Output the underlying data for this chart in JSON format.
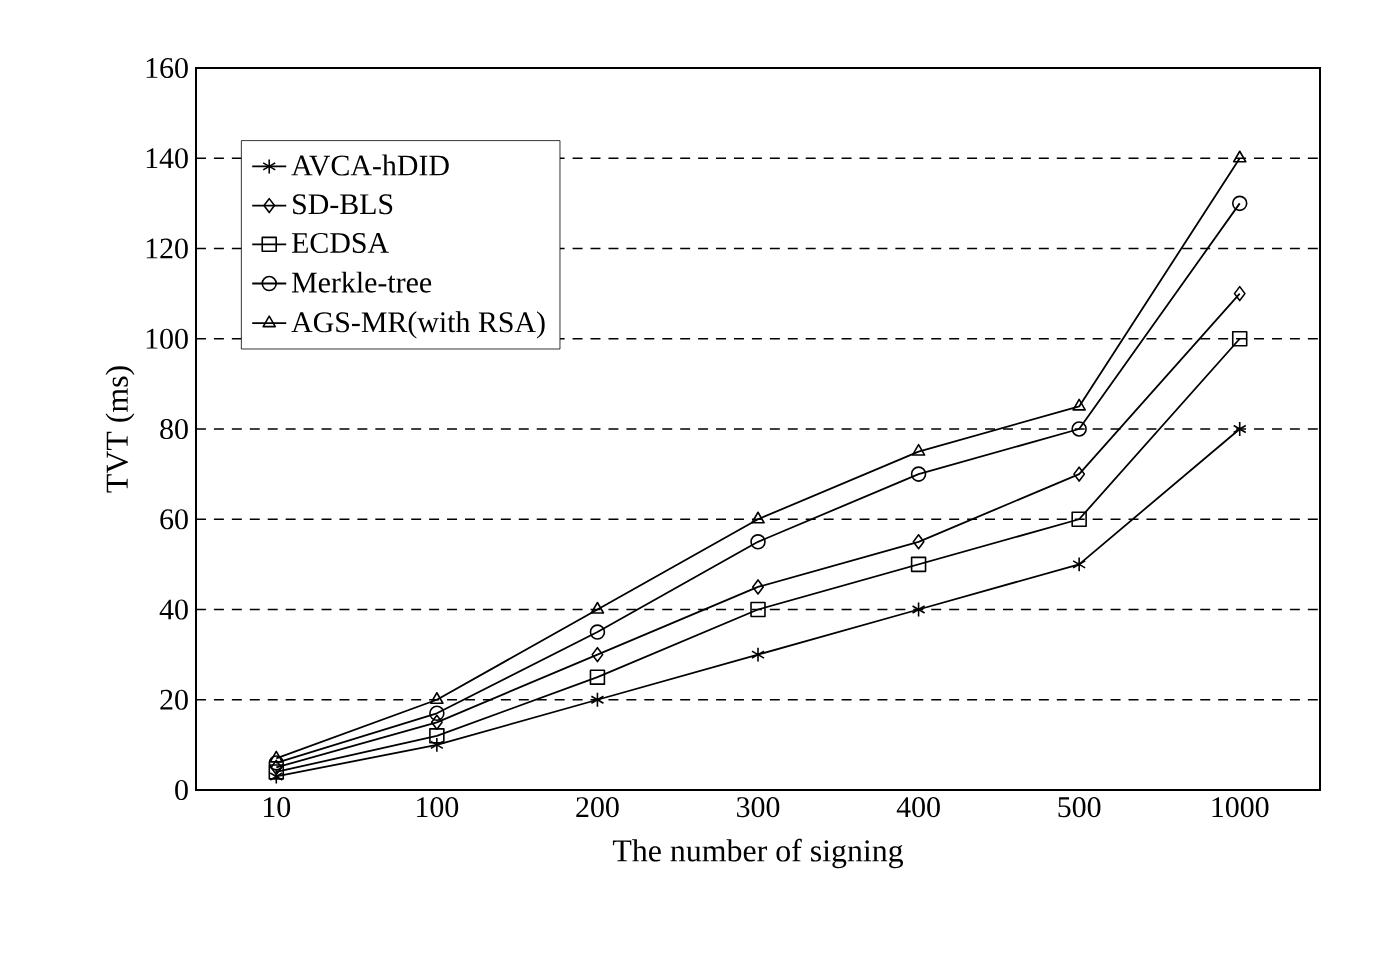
{
  "chart_data": {
    "type": "line",
    "xlabel": "The number of signing",
    "ylabel": "TVT (ms)",
    "categories": [
      "10",
      "100",
      "200",
      "300",
      "400",
      "500",
      "1000"
    ],
    "ylim": [
      0,
      160
    ],
    "yticks": [
      0,
      20,
      40,
      60,
      80,
      100,
      120,
      140,
      160
    ],
    "grid": "y",
    "legend": "top left",
    "line_style": "solid",
    "series": [
      {
        "name": "AVCA-hDID",
        "color": "#000000",
        "marker": "cross",
        "values": [
          3,
          10,
          20,
          30,
          40,
          50,
          80
        ]
      },
      {
        "name": "SD-BLS",
        "color": "#000000",
        "marker": "diamond",
        "values": [
          5,
          15,
          30,
          45,
          55,
          70,
          110
        ]
      },
      {
        "name": "ECDSA",
        "color": "#000000",
        "marker": "square",
        "values": [
          4,
          12,
          25,
          40,
          50,
          60,
          100
        ]
      },
      {
        "name": "Merkle-tree",
        "color": "#000000",
        "marker": "circle",
        "values": [
          6,
          17,
          35,
          55,
          70,
          80,
          130
        ]
      },
      {
        "name": "AGS-MR(with RSA)",
        "color": "#000000",
        "marker": "triangle",
        "values": [
          7,
          20,
          40,
          60,
          75,
          85,
          140
        ]
      }
    ]
  }
}
